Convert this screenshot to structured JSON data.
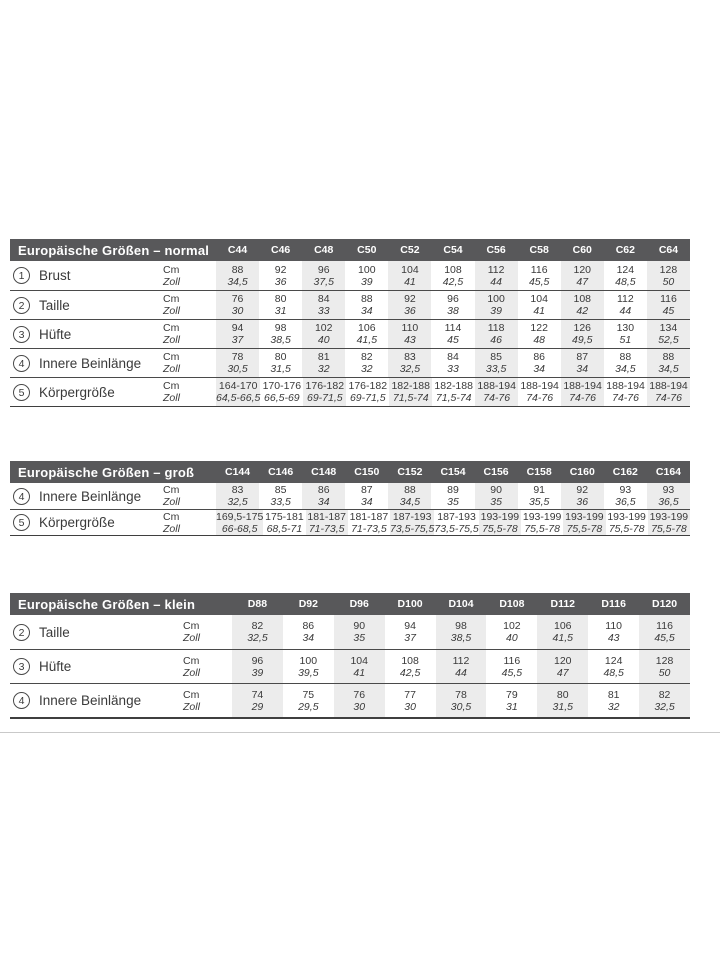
{
  "colors": {
    "header_bar_bg": "#58585a",
    "header_bar_text": "#ffffff",
    "shaded_column_bg": "#ececec",
    "row_separator": "#4a4a4a",
    "body_text": "#3a3a3a",
    "page_bg": "#ffffff",
    "bottom_divider": "#c9c9c9"
  },
  "tables": [
    {
      "title": "Europäische Größen – normal",
      "columns": [
        "C44",
        "C46",
        "C48",
        "C50",
        "C52",
        "C54",
        "C56",
        "C58",
        "C60",
        "C62",
        "C64"
      ],
      "unit_labels": [
        "Cm",
        "Zoll"
      ],
      "rows": [
        {
          "num": "1",
          "label": "Brust",
          "cm": [
            "88",
            "92",
            "96",
            "100",
            "104",
            "108",
            "112",
            "116",
            "120",
            "124",
            "128"
          ],
          "zoll": [
            "34,5",
            "36",
            "37,5",
            "39",
            "41",
            "42,5",
            "44",
            "45,5",
            "47",
            "48,5",
            "50"
          ]
        },
        {
          "num": "2",
          "label": "Taille",
          "cm": [
            "76",
            "80",
            "84",
            "88",
            "92",
            "96",
            "100",
            "104",
            "108",
            "112",
            "116"
          ],
          "zoll": [
            "30",
            "31",
            "33",
            "34",
            "36",
            "38",
            "39",
            "41",
            "42",
            "44",
            "45"
          ]
        },
        {
          "num": "3",
          "label": "Hüfte",
          "cm": [
            "94",
            "98",
            "102",
            "106",
            "110",
            "114",
            "118",
            "122",
            "126",
            "130",
            "134"
          ],
          "zoll": [
            "37",
            "38,5",
            "40",
            "41,5",
            "43",
            "45",
            "46",
            "48",
            "49,5",
            "51",
            "52,5"
          ]
        },
        {
          "num": "4",
          "label": "Innere Beinlänge",
          "cm": [
            "78",
            "80",
            "81",
            "82",
            "83",
            "84",
            "85",
            "86",
            "87",
            "88",
            "88"
          ],
          "zoll": [
            "30,5",
            "31,5",
            "32",
            "32",
            "32,5",
            "33",
            "33,5",
            "34",
            "34",
            "34,5",
            "34,5"
          ]
        },
        {
          "num": "5",
          "label": "Körpergröße",
          "cm": [
            "164-170",
            "170-176",
            "176-182",
            "176-182",
            "182-188",
            "182-188",
            "188-194",
            "188-194",
            "188-194",
            "188-194",
            "188-194"
          ],
          "zoll": [
            "64,5-66,5",
            "66,5-69",
            "69-71,5",
            "69-71,5",
            "71,5-74",
            "71,5-74",
            "74-76",
            "74-76",
            "74-76",
            "74-76",
            "74-76"
          ]
        }
      ]
    },
    {
      "title": "Europäische Größen – groß",
      "columns": [
        "C144",
        "C146",
        "C148",
        "C150",
        "C152",
        "C154",
        "C156",
        "C158",
        "C160",
        "C162",
        "C164"
      ],
      "unit_labels": [
        "Cm",
        "Zoll"
      ],
      "rows": [
        {
          "num": "4",
          "label": "Innere Beinlänge",
          "cm": [
            "83",
            "85",
            "86",
            "87",
            "88",
            "89",
            "90",
            "91",
            "92",
            "93",
            "93"
          ],
          "zoll": [
            "32,5",
            "33,5",
            "34",
            "34",
            "34,5",
            "35",
            "35",
            "35,5",
            "36",
            "36,5",
            "36,5"
          ]
        },
        {
          "num": "5",
          "label": "Körpergröße",
          "cm": [
            "169,5-175",
            "175-181",
            "181-187",
            "181-187",
            "187-193",
            "187-193",
            "193-199",
            "193-199",
            "193-199",
            "193-199",
            "193-199"
          ],
          "zoll": [
            "66-68,5",
            "68,5-71",
            "71-73,5",
            "71-73,5",
            "73,5-75,5",
            "73,5-75,5",
            "75,5-78",
            "75,5-78",
            "75,5-78",
            "75,5-78",
            "75,5-78"
          ]
        }
      ]
    },
    {
      "title": "Europäische Größen – klein",
      "columns": [
        "D88",
        "D92",
        "D96",
        "D100",
        "D104",
        "D108",
        "D112",
        "D116",
        "D120"
      ],
      "unit_labels": [
        "Cm",
        "Zoll"
      ],
      "rows": [
        {
          "num": "2",
          "label": "Taille",
          "cm": [
            "82",
            "86",
            "90",
            "94",
            "98",
            "102",
            "106",
            "110",
            "116"
          ],
          "zoll": [
            "32,5",
            "34",
            "35",
            "37",
            "38,5",
            "40",
            "41,5",
            "43",
            "45,5"
          ]
        },
        {
          "num": "3",
          "label": "Hüfte",
          "cm": [
            "96",
            "100",
            "104",
            "108",
            "112",
            "116",
            "120",
            "124",
            "128"
          ],
          "zoll": [
            "39",
            "39,5",
            "41",
            "42,5",
            "44",
            "45,5",
            "47",
            "48,5",
            "50"
          ]
        },
        {
          "num": "4",
          "label": "Innere Beinlänge",
          "cm": [
            "74",
            "75",
            "76",
            "77",
            "78",
            "79",
            "80",
            "81",
            "82"
          ],
          "zoll": [
            "29",
            "29,5",
            "30",
            "30",
            "30,5",
            "31",
            "31,5",
            "32",
            "32,5"
          ]
        }
      ]
    }
  ]
}
